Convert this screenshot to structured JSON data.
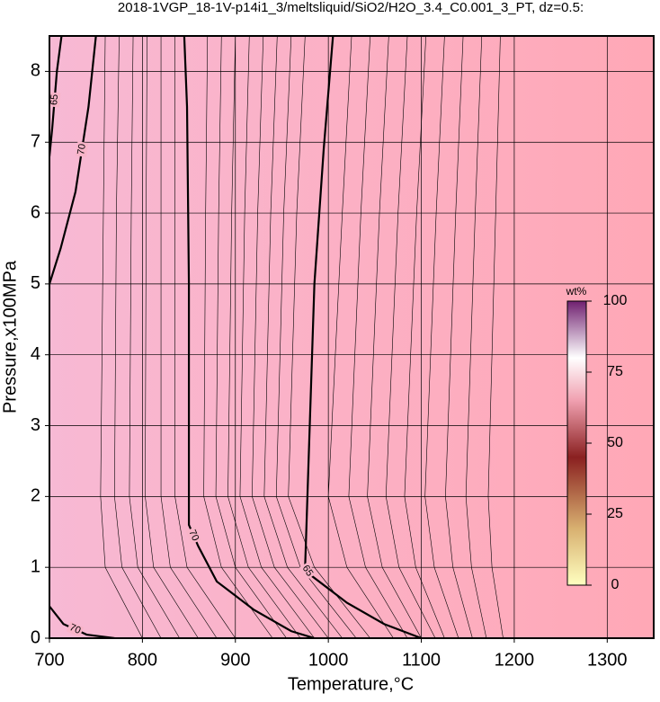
{
  "chart_data": {
    "type": "contour",
    "title": "2018-1VGP_18-1V-p14i1_3/meltsliquid/SiO2/H2O_3.4_C0.001_3_PT, dz=0.5:",
    "x_label": "Temperature,°C",
    "y_label": "Pressure,x100MPa",
    "xlim": [
      700,
      1350
    ],
    "ylim": [
      0,
      8.5
    ],
    "xticks": [
      700,
      800,
      900,
      1000,
      1100,
      1200,
      1300
    ],
    "yticks": [
      0,
      1,
      2,
      3,
      4,
      5,
      6,
      7,
      8
    ],
    "grid": true,
    "contours": [
      {
        "name": "70",
        "x": [
          845,
          848,
          850,
          850,
          860,
          880,
          920,
          960,
          985
        ],
        "y": [
          8.5,
          7.5,
          5,
          1.6,
          1.3,
          0.8,
          0.4,
          0.1,
          0
        ]
      },
      {
        "name": "65",
        "x": [
          1005,
          995,
          985,
          975,
          980,
          1020,
          1060,
          1100
        ],
        "y": [
          8.5,
          6.9,
          5,
          1,
          0.9,
          0.5,
          0.2,
          0
        ]
      },
      {
        "name": "70",
        "x": [
          750,
          742,
          728,
          712,
          700
        ],
        "y": [
          8.5,
          7.5,
          6.3,
          5.5,
          5
        ]
      },
      {
        "name": "65",
        "x": [
          713,
          708,
          703,
          700
        ],
        "y": [
          8.5,
          8,
          7.2,
          6.8
        ]
      },
      {
        "name": "70",
        "x": [
          700,
          715,
          740,
          770
        ],
        "y": [
          0.45,
          0.2,
          0.05,
          0
        ]
      }
    ],
    "thin_contours": [
      {
        "x": [
          760,
          758,
          755,
          760,
          800
        ],
        "y": [
          8.5,
          6,
          2,
          1,
          0
        ]
      },
      {
        "x": [
          775,
          772,
          770,
          778,
          820
        ],
        "y": [
          8.5,
          6,
          2,
          1,
          0
        ]
      },
      {
        "x": [
          790,
          788,
          786,
          795,
          840
        ],
        "y": [
          8.5,
          6,
          2,
          1,
          0
        ]
      },
      {
        "x": [
          805,
          804,
          803,
          812,
          860
        ],
        "y": [
          8.5,
          6,
          2,
          1,
          0
        ]
      },
      {
        "x": [
          820,
          820,
          820,
          830,
          880
        ],
        "y": [
          8.5,
          6,
          2,
          1,
          0
        ]
      },
      {
        "x": [
          835,
          835,
          835,
          848,
          900
        ],
        "y": [
          8.5,
          6,
          2,
          1,
          0
        ]
      },
      {
        "x": [
          870,
          868,
          866,
          885,
          940
        ],
        "y": [
          8.5,
          6,
          2,
          1,
          0
        ]
      },
      {
        "x": [
          885,
          882,
          879,
          900,
          955
        ],
        "y": [
          8.5,
          6,
          2,
          1,
          0
        ]
      },
      {
        "x": [
          900,
          896,
          892,
          914,
          970
        ],
        "y": [
          8.5,
          6,
          2,
          1,
          0
        ]
      },
      {
        "x": [
          915,
          910,
          905,
          928,
          985
        ],
        "y": [
          8.5,
          6,
          2,
          1,
          0
        ]
      },
      {
        "x": [
          930,
          924,
          918,
          942,
          1000
        ],
        "y": [
          8.5,
          6,
          2,
          1,
          0
        ]
      },
      {
        "x": [
          945,
          938,
          931,
          956,
          1015
        ],
        "y": [
          8.5,
          6,
          2,
          1,
          0
        ]
      },
      {
        "x": [
          960,
          952,
          944,
          970,
          1030
        ],
        "y": [
          8.5,
          6,
          2,
          1,
          0
        ]
      },
      {
        "x": [
          975,
          966,
          957,
          985,
          1045
        ],
        "y": [
          8.5,
          6,
          2,
          1,
          0
        ]
      },
      {
        "x": [
          1025,
          1015,
          1000,
          1020,
          1070
        ],
        "y": [
          8.5,
          6,
          2,
          1,
          0
        ]
      },
      {
        "x": [
          1045,
          1035,
          1022,
          1040,
          1085
        ],
        "y": [
          8.5,
          6,
          2,
          1,
          0
        ]
      },
      {
        "x": [
          1065,
          1055,
          1042,
          1058,
          1100
        ],
        "y": [
          8.5,
          6,
          2,
          1,
          0
        ]
      },
      {
        "x": [
          1085,
          1075,
          1062,
          1076,
          1115
        ],
        "y": [
          8.5,
          6,
          2,
          1,
          0
        ]
      },
      {
        "x": [
          1105,
          1095,
          1082,
          1094,
          1125
        ],
        "y": [
          8.5,
          6,
          2,
          1,
          0
        ]
      },
      {
        "x": [
          1125,
          1116,
          1104,
          1114,
          1140
        ],
        "y": [
          8.5,
          6,
          2,
          1,
          0
        ]
      },
      {
        "x": [
          1145,
          1137,
          1126,
          1134,
          1155
        ],
        "y": [
          8.5,
          6,
          2,
          1,
          0
        ]
      },
      {
        "x": [
          1165,
          1158,
          1148,
          1154,
          1170
        ],
        "y": [
          8.5,
          6,
          2,
          1,
          0
        ]
      },
      {
        "x": [
          1185,
          1180,
          1172,
          1176,
          1188
        ],
        "y": [
          8.5,
          6,
          2,
          1,
          0
        ]
      }
    ],
    "colorbar": {
      "label": "wt%",
      "lim": [
        0,
        100
      ],
      "ticks": [
        0,
        25,
        50,
        75,
        100
      ]
    }
  }
}
